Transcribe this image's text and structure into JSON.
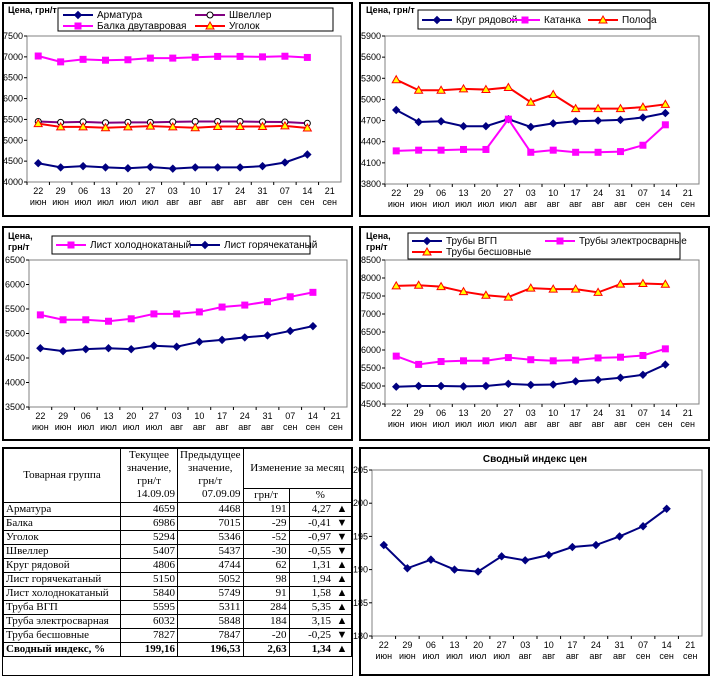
{
  "chart_data": [
    {
      "type": "line",
      "ylabel": "Цена, грн/т",
      "categories": [
        "22 июн",
        "29 июн",
        "06 июл",
        "13 июл",
        "20 июл",
        "27 июл",
        "03 авг",
        "10 авг",
        "17 авг",
        "24 авг",
        "31 авг",
        "07 сен",
        "14 сен",
        "21 сен"
      ],
      "ylim": [
        4000,
        7500
      ],
      "yticks": [
        4000,
        4500,
        5000,
        5500,
        6000,
        6500,
        7000,
        7500
      ],
      "series": [
        {
          "name": "Арматура",
          "color": "#000080",
          "marker": "diamond",
          "marker_fill": "#000080",
          "values": [
            4450,
            4350,
            4380,
            4350,
            4330,
            4360,
            4320,
            4350,
            4350,
            4350,
            4380,
            4468,
            4659,
            null
          ]
        },
        {
          "name": "Швеллер",
          "color": "#800080",
          "marker": "circle",
          "marker_fill": "#ffffff",
          "values": [
            5450,
            5430,
            5440,
            5420,
            5430,
            5430,
            5440,
            5450,
            5450,
            5450,
            5440,
            5437,
            5407,
            null
          ]
        },
        {
          "name": "Балка двутавровая",
          "color": "#ff00ff",
          "marker": "square",
          "marker_fill": "#ff00ff",
          "values": [
            7020,
            6880,
            6940,
            6920,
            6930,
            6970,
            6970,
            6990,
            7010,
            7010,
            7000,
            7015,
            6986,
            null
          ]
        },
        {
          "name": "Уголок",
          "color": "#ff0000",
          "marker": "triangle",
          "marker_fill": "#ffff00",
          "values": [
            5400,
            5320,
            5320,
            5300,
            5320,
            5340,
            5320,
            5300,
            5330,
            5330,
            5330,
            5346,
            5294,
            null
          ]
        }
      ]
    },
    {
      "type": "line",
      "ylabel": "Цена, грн/т",
      "categories": [
        "22 июн",
        "29 июн",
        "06 июл",
        "13 июл",
        "20 июл",
        "27 июл",
        "03 авг",
        "10 авг",
        "17 авг",
        "24 авг",
        "31 авг",
        "07 сен",
        "14 сен",
        "21 сен"
      ],
      "ylim": [
        3800,
        5900
      ],
      "yticks": [
        3800,
        4100,
        4400,
        4700,
        5000,
        5300,
        5600,
        5900
      ],
      "series": [
        {
          "name": "Круг рядовой",
          "color": "#000080",
          "marker": "diamond",
          "marker_fill": "#000080",
          "values": [
            4850,
            4680,
            4690,
            4620,
            4620,
            4720,
            4610,
            4660,
            4690,
            4700,
            4710,
            4744,
            4806,
            null
          ]
        },
        {
          "name": "Катанка",
          "color": "#ff00ff",
          "marker": "square",
          "marker_fill": "#ff00ff",
          "values": [
            4270,
            4280,
            4280,
            4290,
            4290,
            4720,
            4250,
            4280,
            4250,
            4250,
            4260,
            4350,
            4640,
            null
          ]
        },
        {
          "name": "Полоса",
          "color": "#ff0000",
          "marker": "triangle",
          "marker_fill": "#ffff00",
          "values": [
            5280,
            5130,
            5130,
            5150,
            5140,
            5170,
            4960,
            5070,
            4870,
            4870,
            4870,
            4890,
            4930,
            null
          ]
        }
      ]
    },
    {
      "type": "line",
      "ylabel": "Цена, грн/т",
      "categories": [
        "22 июн",
        "29 июн",
        "06 июл",
        "13 июл",
        "20 июл",
        "27 июл",
        "03 авг",
        "10 авг",
        "17 авг",
        "24 авг",
        "31 авг",
        "07 сен",
        "14 сен",
        "21 сен"
      ],
      "ylim": [
        3500,
        6500
      ],
      "yticks": [
        3500,
        4000,
        4500,
        5000,
        5500,
        6000,
        6500
      ],
      "series": [
        {
          "name": "Лист холоднокатаный",
          "color": "#ff00ff",
          "marker": "square",
          "marker_fill": "#ff00ff",
          "values": [
            5380,
            5280,
            5280,
            5250,
            5300,
            5400,
            5400,
            5440,
            5540,
            5580,
            5650,
            5749,
            5840,
            null
          ]
        },
        {
          "name": "Лист горячекатаный",
          "color": "#000080",
          "marker": "diamond",
          "marker_fill": "#000080",
          "values": [
            4700,
            4640,
            4680,
            4700,
            4680,
            4750,
            4730,
            4830,
            4870,
            4920,
            4960,
            5052,
            5150,
            null
          ]
        }
      ]
    },
    {
      "type": "line",
      "ylabel": "Цена, грн/т",
      "categories": [
        "22 июн",
        "29 июн",
        "06 июл",
        "13 июл",
        "20 июл",
        "27 июл",
        "03 авг",
        "10 авг",
        "17 авг",
        "24 авг",
        "31 авг",
        "07 сен",
        "14 сен",
        "21 сен"
      ],
      "ylim": [
        4500,
        8500
      ],
      "yticks": [
        4500,
        5000,
        5500,
        6000,
        6500,
        7000,
        7500,
        8000,
        8500
      ],
      "series": [
        {
          "name": "Трубы ВГП",
          "color": "#000080",
          "marker": "diamond",
          "marker_fill": "#000080",
          "values": [
            4980,
            5000,
            5000,
            4990,
            5000,
            5060,
            5030,
            5040,
            5130,
            5170,
            5230,
            5311,
            5595,
            null
          ]
        },
        {
          "name": "Трубы электросварные",
          "color": "#ff00ff",
          "marker": "square",
          "marker_fill": "#ff00ff",
          "values": [
            5830,
            5600,
            5680,
            5700,
            5700,
            5790,
            5730,
            5700,
            5720,
            5780,
            5800,
            5848,
            6032,
            null
          ]
        },
        {
          "name": "Трубы бесшовные",
          "color": "#ff0000",
          "marker": "triangle",
          "marker_fill": "#ffff00",
          "values": [
            7780,
            7800,
            7760,
            7620,
            7520,
            7470,
            7720,
            7690,
            7690,
            7600,
            7830,
            7847,
            7827,
            null
          ]
        }
      ]
    },
    {
      "type": "line",
      "title": "Сводный индекс цен",
      "categories": [
        "22 июн",
        "29 июн",
        "06 июл",
        "13 июл",
        "20 июл",
        "27 июл",
        "03 авг",
        "10 авг",
        "17 авг",
        "24 авг",
        "31 авг",
        "07 сен",
        "14 сен",
        "21 сен"
      ],
      "ylim": [
        180,
        205
      ],
      "yticks": [
        180,
        185,
        190,
        195,
        200,
        205
      ],
      "series": [
        {
          "color": "#000080",
          "marker": "diamond",
          "marker_fill": "#000080",
          "values": [
            193.7,
            190.2,
            191.5,
            190.0,
            189.7,
            192.0,
            191.4,
            192.2,
            193.4,
            193.7,
            195.0,
            196.53,
            199.16,
            null
          ]
        }
      ]
    }
  ],
  "table": {
    "headers": {
      "group": "Товарная группа",
      "current": "Текущее значение, грн/т",
      "previous": "Предыдущее значение, грн/т",
      "change": "Изменение за месяц",
      "current_date": "14.09.09",
      "previous_date": "07.09.09",
      "abs_unit": "грн/т",
      "pct_unit": "%"
    },
    "rows": [
      [
        "Арматура",
        4659,
        4468,
        191,
        "4,27",
        "▲"
      ],
      [
        "Балка",
        6986,
        7015,
        -29,
        "-0,41",
        "▼"
      ],
      [
        "Уголок",
        5294,
        5346,
        -52,
        "-0,97",
        "▼"
      ],
      [
        "Швеллер",
        5407,
        5437,
        -30,
        "-0,55",
        "▼"
      ],
      [
        "Круг рядовой",
        4806,
        4744,
        62,
        "1,31",
        "▲"
      ],
      [
        "Лист горячекатаный",
        5150,
        5052,
        98,
        "1,94",
        "▲"
      ],
      [
        "Лист холоднокатаный",
        5840,
        5749,
        91,
        "1,58",
        "▲"
      ],
      [
        "Труба ВГП",
        5595,
        5311,
        284,
        "5,35",
        "▲"
      ],
      [
        "Труба электросварная",
        6032,
        5848,
        184,
        "3,15",
        "▲"
      ],
      [
        "Труба бесшовные",
        7827,
        7847,
        -20,
        "-0,25",
        "▼"
      ],
      [
        "Сводный индекс, %",
        "199,16",
        "196,53",
        "2,63",
        "1,34",
        "▲"
      ]
    ]
  }
}
